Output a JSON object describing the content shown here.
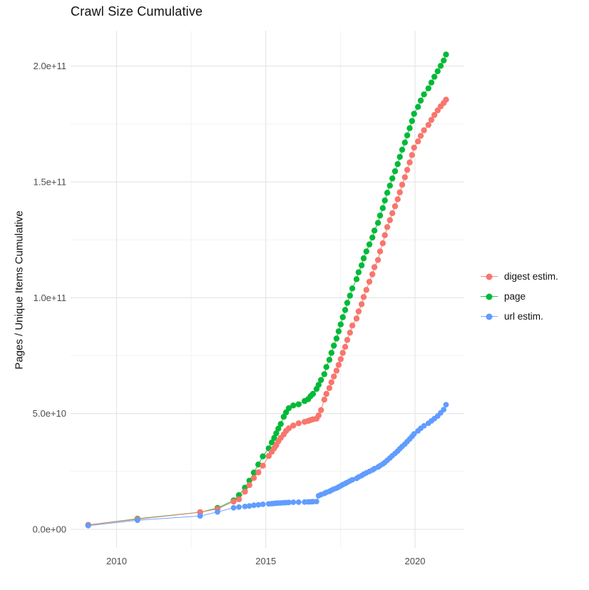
{
  "title": "Crawl Size Cumulative",
  "chart_data": {
    "type": "scatter",
    "title": "Crawl Size Cumulative",
    "xlabel": "",
    "ylabel": "Pages / Unique Items Cumulative",
    "grid": "on",
    "legend_position": "right",
    "value_unit_note": "values are billions (1e9) of pages / unique items",
    "xlim": [
      2008.45,
      2021.65
    ],
    "ylim_billions": [
      -8.6,
      214.5
    ],
    "x_ticks": {
      "major": [
        {
          "value": 2010,
          "label": "2010"
        },
        {
          "value": 2015,
          "label": "2015"
        },
        {
          "value": 2020,
          "label": "2020"
        }
      ],
      "minor": [
        2012.5,
        2017.5
      ]
    },
    "y_ticks": {
      "major": [
        {
          "value_billions": 0,
          "label": "0.0e+00"
        },
        {
          "value_billions": 50,
          "label": "5.0e+10"
        },
        {
          "value_billions": 100,
          "label": "1.0e+11"
        },
        {
          "value_billions": 150,
          "label": "1.5e+11"
        },
        {
          "value_billions": 200,
          "label": "2.0e+11"
        }
      ],
      "minor_billions": [
        25,
        75,
        125,
        175
      ]
    },
    "x": [
      2009.05,
      2010.7,
      2012.8,
      2013.38,
      2013.92,
      2014.1,
      2014.3,
      2014.45,
      2014.6,
      2014.75,
      2014.9,
      2015.1,
      2015.2,
      2015.28,
      2015.35,
      2015.42,
      2015.5,
      2015.6,
      2015.68,
      2015.77,
      2015.92,
      2016.1,
      2016.3,
      2016.42,
      2016.5,
      2016.58,
      2016.7,
      2016.77,
      2016.85,
      2016.96,
      2017.03,
      2017.13,
      2017.2,
      2017.28,
      2017.37,
      2017.44,
      2017.51,
      2017.58,
      2017.66,
      2017.73,
      2017.82,
      2017.9,
      2018.04,
      2018.11,
      2018.21,
      2018.28,
      2018.37,
      2018.47,
      2018.57,
      2018.64,
      2018.76,
      2018.83,
      2018.92,
      2018.99,
      2019.07,
      2019.16,
      2019.24,
      2019.33,
      2019.42,
      2019.49,
      2019.57,
      2019.66,
      2019.74,
      2019.82,
      2019.9,
      2019.97,
      2020.1,
      2020.19,
      2020.3,
      2020.45,
      2020.55,
      2020.65,
      2020.76,
      2020.86,
      2020.96,
      2021.04
    ],
    "series": [
      {
        "name": "page",
        "color": "#00BA38",
        "point_radius": 4.2,
        "values_billions": [
          1.9,
          4.6,
          7.4,
          9.2,
          12.5,
          14.8,
          18.0,
          21.0,
          24.5,
          28.0,
          31.5,
          35.0,
          37.5,
          39.5,
          41.5,
          43.5,
          45.5,
          48.6,
          50.5,
          52.3,
          53.5,
          54.0,
          55.4,
          56.2,
          57.5,
          58.5,
          60.6,
          62.4,
          64.5,
          67.0,
          70.1,
          73.2,
          76.2,
          79.3,
          82.4,
          85.5,
          88.5,
          91.6,
          94.7,
          97.8,
          100.9,
          104.0,
          108.0,
          111.0,
          114.0,
          117.0,
          120.0,
          123.0,
          126.0,
          129.0,
          132.3,
          135.5,
          138.7,
          142.0,
          145.3,
          148.4,
          151.5,
          154.6,
          157.7,
          160.8,
          163.9,
          167.0,
          170.1,
          173.2,
          176.3,
          179.4,
          182.4,
          185.1,
          187.8,
          190.4,
          192.9,
          195.4,
          197.8,
          200.1,
          202.4,
          205.0
        ]
      },
      {
        "name": "digest estim.",
        "color": "#F8766D",
        "point_radius": 4.2,
        "values_billions": [
          1.9,
          4.4,
          7.4,
          8.8,
          12.0,
          13.0,
          16.3,
          19.1,
          22.2,
          24.6,
          27.5,
          31.7,
          33.5,
          35.0,
          36.3,
          38.0,
          39.5,
          41.0,
          42.5,
          43.6,
          44.8,
          45.8,
          46.4,
          46.8,
          47.2,
          47.5,
          47.8,
          49.2,
          51.5,
          56.0,
          58.5,
          61.0,
          63.5,
          66.0,
          68.5,
          71.0,
          73.5,
          76.2,
          78.8,
          81.8,
          84.9,
          88.0,
          91.0,
          94.1,
          97.2,
          100.3,
          103.4,
          106.9,
          110.1,
          113.2,
          116.3,
          120.0,
          123.5,
          127.0,
          130.5,
          133.5,
          136.5,
          139.5,
          142.5,
          145.5,
          148.8,
          152.0,
          155.2,
          158.4,
          161.6,
          164.8,
          167.5,
          169.9,
          172.3,
          174.6,
          176.8,
          178.9,
          180.9,
          182.6,
          184.1,
          185.5
        ]
      },
      {
        "name": "url estim.",
        "color": "#619CFF",
        "point_radius": 3.9,
        "values_billions": [
          1.6,
          3.9,
          5.8,
          7.5,
          9.3,
          9.6,
          9.9,
          10.1,
          10.4,
          10.6,
          10.8,
          11.0,
          11.1,
          11.2,
          11.3,
          11.35,
          11.4,
          11.5,
          11.55,
          11.6,
          11.7,
          11.75,
          11.8,
          11.85,
          11.9,
          11.95,
          12.0,
          14.5,
          15.0,
          15.5,
          16.0,
          16.4,
          16.9,
          17.4,
          17.8,
          18.3,
          18.8,
          19.3,
          19.8,
          20.3,
          20.9,
          21.4,
          22.0,
          22.6,
          23.2,
          23.8,
          24.4,
          25.0,
          25.6,
          26.2,
          26.9,
          27.5,
          28.2,
          28.9,
          29.8,
          30.8,
          31.8,
          32.8,
          33.8,
          34.8,
          35.8,
          36.8,
          37.9,
          39.0,
          40.1,
          41.2,
          42.5,
          43.6,
          44.7,
          45.8,
          46.8,
          47.8,
          48.9,
          50.3,
          51.7,
          53.8
        ]
      }
    ],
    "legend": [
      {
        "label": "digest estim.",
        "color": "#F8766D"
      },
      {
        "label": "page",
        "color": "#00BA38"
      },
      {
        "label": "url estim.",
        "color": "#619CFF"
      }
    ],
    "style": {
      "grid_major_color": "#E3E3E3",
      "grid_minor_color": "#EFEFEF",
      "tick_label_color": "#4D4D4D",
      "background": "#FFFFFF"
    }
  }
}
